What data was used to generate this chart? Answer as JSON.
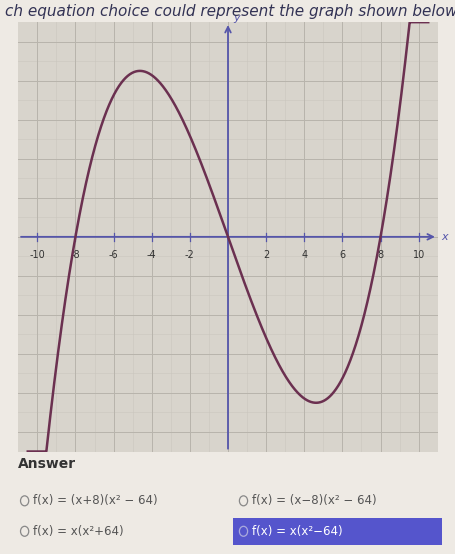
{
  "title": "ch equation choice could represent the graph shown below?",
  "title_fontsize": 11,
  "background_color": "#eeeae4",
  "graph_bg_color": "#d8d4cc",
  "grid_color_major": "#b8b4ac",
  "grid_color_minor": "#cac6be",
  "curve_color": "#6b3050",
  "axis_color": "#5555aa",
  "xlim": [
    -11,
    11
  ],
  "ylim": [
    -11,
    11
  ],
  "xticks": [
    -10,
    -8,
    -6,
    -4,
    -2,
    2,
    4,
    6,
    8,
    10
  ],
  "xlabel": "x",
  "ylabel": "y",
  "answer_label": "Answer",
  "options": [
    "f(x) = (x+8)(x² − 64)",
    "f(x) = (x−8)(x² − 64)",
    "f(x) = x(x²+64)",
    "f(x) = x(x²−64)"
  ],
  "selected_option": 3,
  "selected_bg_color": "#5555cc",
  "selected_text_color": "#ffffff",
  "unselected_text_color": "#555555",
  "curve_linewidth": 1.8,
  "tick_fontsize": 7,
  "option_fontsize": 8.5
}
